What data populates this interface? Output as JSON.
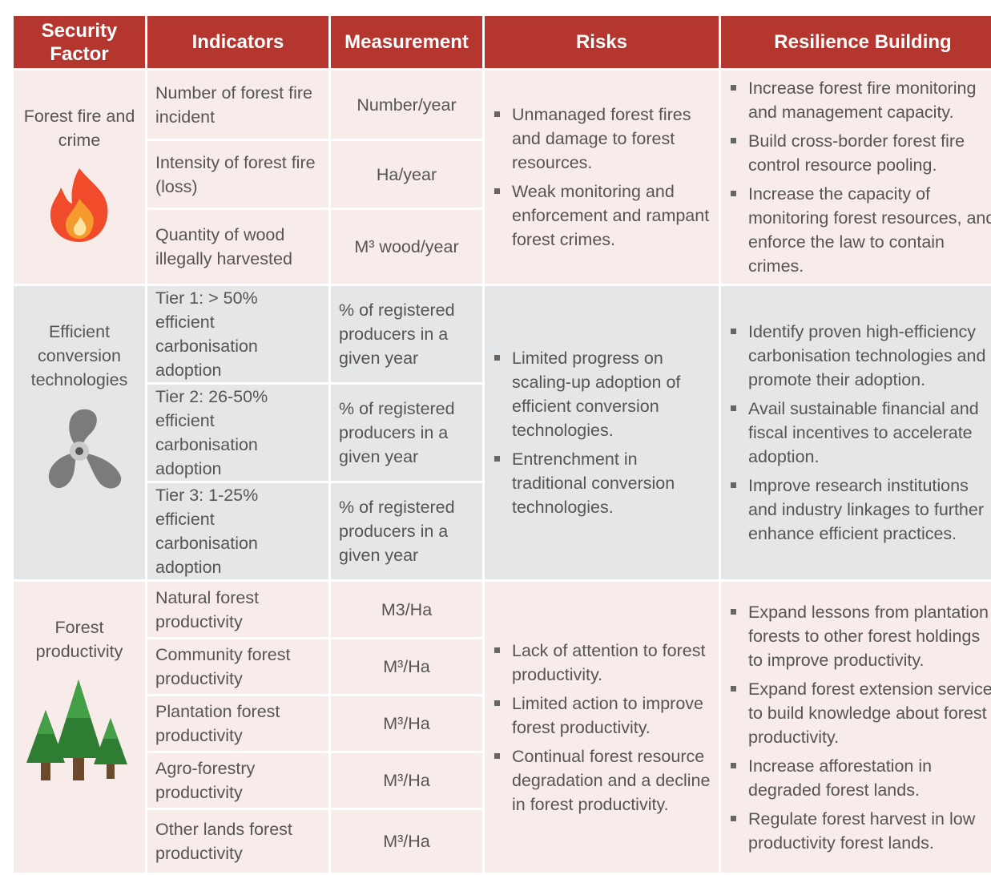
{
  "header": {
    "columns": [
      "Security Factor",
      "Indicators",
      "Measurement",
      "Risks",
      "Resilience Building"
    ]
  },
  "sections": [
    {
      "factor": "Forest fire and crime",
      "indicators": [
        {
          "indicator": "Number of forest fire incident",
          "measurement": "Number/year"
        },
        {
          "indicator": "Intensity of forest fire (loss)",
          "measurement": "Ha/year"
        },
        {
          "indicator": "Quantity of wood illegally harvested",
          "measurement": "M³ wood/year"
        }
      ],
      "risks": [
        "Unmanaged forest fires and damage to forest resources.",
        "Weak monitoring and enforcement and rampant forest crimes."
      ],
      "resilience": [
        "Increase forest fire monitoring and management capacity.",
        "Build cross-border forest fire control resource pooling.",
        "Increase the capacity of monitoring forest resources, and enforce the law to contain crimes."
      ]
    },
    {
      "factor": "Efficient conversion technologies",
      "indicators": [
        {
          "indicator": "Tier 1: > 50% efficient carbonisation adoption",
          "measurement": "% of registered producers in a given year"
        },
        {
          "indicator": "Tier 2: 26-50% efficient carbonisation adoption",
          "measurement": "% of registered producers in a given year"
        },
        {
          "indicator": "Tier 3: 1-25% efficient carbonisation adoption",
          "measurement": "% of registered producers in a given year"
        }
      ],
      "risks": [
        "Limited progress on scaling-up adoption of efficient conversion technologies.",
        "Entrenchment in traditional conversion technologies."
      ],
      "resilience": [
        "Identify proven high-efficiency carbonisation technologies and promote their adoption.",
        "Avail sustainable financial and fiscal incentives to accelerate adoption.",
        "Improve research institutions and industry linkages to further enhance efficient practices."
      ]
    },
    {
      "factor": "Forest productivity",
      "indicators": [
        {
          "indicator": "Natural forest productivity",
          "measurement": "M3/Ha"
        },
        {
          "indicator": "Community forest productivity",
          "measurement": "M³/Ha"
        },
        {
          "indicator": "Plantation forest productivity",
          "measurement": "M³/Ha"
        },
        {
          "indicator": "Agro-forestry productivity",
          "measurement": "M³/Ha"
        },
        {
          "indicator": "Other lands forest productivity",
          "measurement": "M³/Ha"
        }
      ],
      "risks": [
        "Lack of attention to forest productivity.",
        "Limited action to improve forest productivity.",
        "Continual forest resource degradation and a decline in forest productivity."
      ],
      "resilience": [
        "Expand lessons from plantation forests to other forest holdings to improve productivity.",
        "Expand forest extension service to build knowledge about forest productivity.",
        "Increase afforestation in degraded forest lands.",
        "Regulate forest harvest in low productivity forest lands."
      ]
    }
  ]
}
